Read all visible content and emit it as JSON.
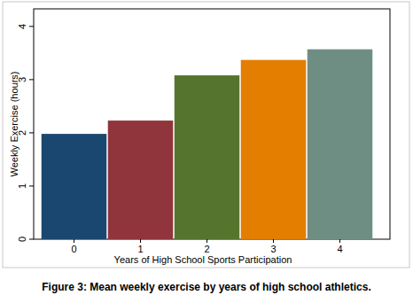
{
  "chart_data": {
    "type": "bar",
    "title": "Figure 3: Mean weekly exercise by years of high school athletics.",
    "x_label": "Years of High School Sports Participation",
    "y_label": "Weekly Exercise (hours)",
    "categories": [
      "0",
      "1",
      "2",
      "3",
      "4"
    ],
    "values": [
      1.98,
      2.23,
      3.08,
      3.37,
      3.57
    ],
    "colors": [
      "#1a476f",
      "#90353b",
      "#55752f",
      "#e37e00",
      "#6e8e84"
    ],
    "ylim": [
      0,
      4.33
    ],
    "yticks": [
      0,
      1,
      2,
      3,
      4
    ],
    "grid": false
  }
}
